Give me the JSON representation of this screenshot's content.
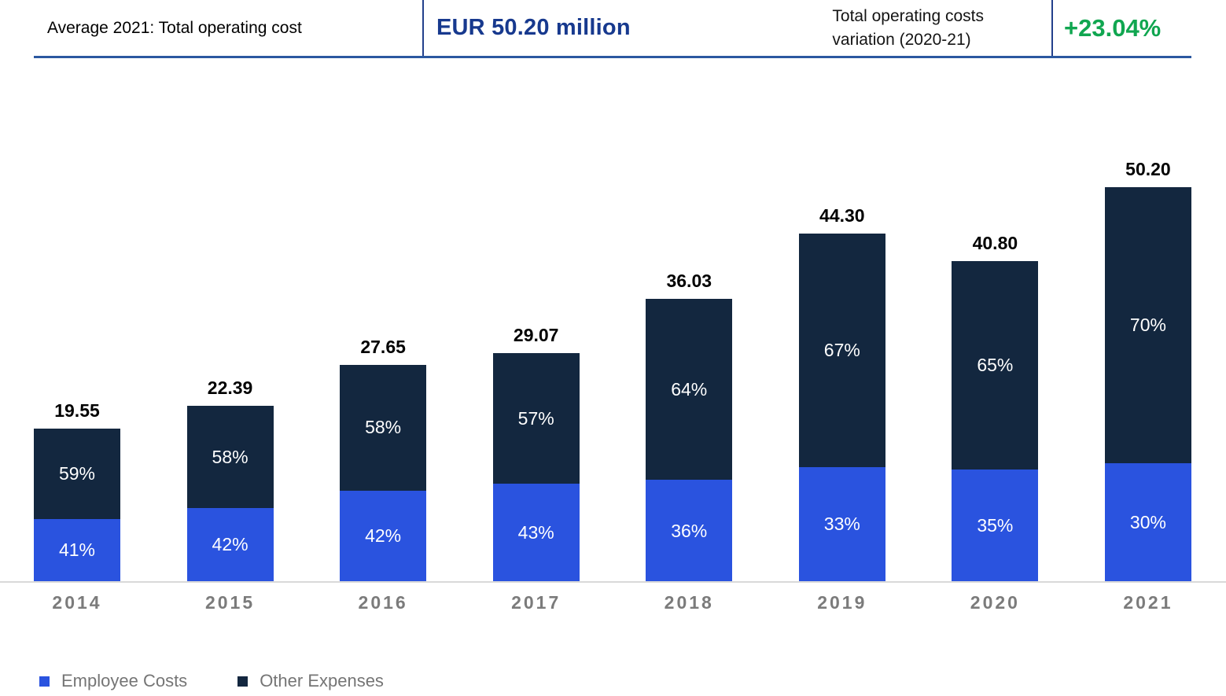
{
  "header": {
    "average_label": "Average 2021: Total operating cost",
    "average_value": "EUR 50.20 million",
    "variation_label_lines": [
      "Total operating costs",
      "variation (2020-21)"
    ],
    "variation_value": "+23.04%"
  },
  "colors": {
    "employee": "#2A53DF",
    "other": "#13273F",
    "header_line": "#2B58A0",
    "header_divider": "#23408C",
    "average_value_text": "#17398E",
    "variation_green": "#10A650",
    "axis_line": "#D9D9D9",
    "year_label": "#7B7B7B",
    "legend_text": "#757575"
  },
  "chart_data": {
    "type": "bar",
    "stacked": true,
    "grid": false,
    "legend_position": "bottom-left",
    "categories": [
      "2014",
      "2015",
      "2016",
      "2017",
      "2018",
      "2019",
      "2020",
      "2021"
    ],
    "totals": [
      19.55,
      22.39,
      27.65,
      29.07,
      36.03,
      44.3,
      40.8,
      50.2
    ],
    "total_labels": [
      "19.55",
      "22.39",
      "27.65",
      "29.07",
      "36.03",
      "44.30",
      "40.80",
      "50.20"
    ],
    "series": [
      {
        "name": "Employee Costs",
        "unit": "%",
        "values": [
          41,
          42,
          42,
          43,
          36,
          33,
          35,
          30
        ],
        "color": "#2A53DF"
      },
      {
        "name": "Other Expenses",
        "unit": "%",
        "values": [
          59,
          58,
          58,
          57,
          64,
          67,
          65,
          70
        ],
        "color": "#13273F"
      }
    ],
    "segment_label_format": "{value}%"
  },
  "legend": {
    "items": [
      {
        "label": "Employee Costs",
        "color": "#2A53DF"
      },
      {
        "label": "Other Expenses",
        "color": "#13273F"
      }
    ]
  }
}
